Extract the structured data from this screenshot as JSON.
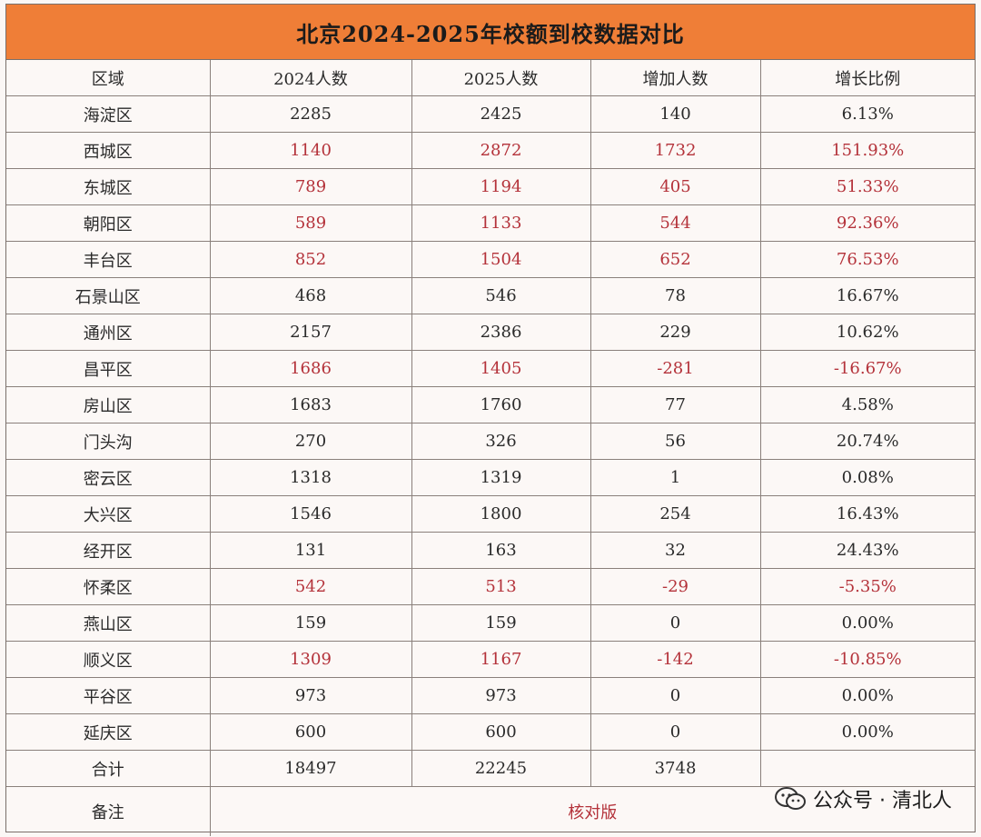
{
  "title": "北京2024-2025年校额到校数据对比",
  "headers": [
    "区域",
    "2024人数",
    "2025人数",
    "增加人数",
    "增长比例"
  ],
  "rows": [
    {
      "district": "海淀区",
      "y2024": "2285",
      "y2025": "2425",
      "increase": "140",
      "ratio": "6.13%",
      "highlight": false
    },
    {
      "district": "西城区",
      "y2024": "1140",
      "y2025": "2872",
      "increase": "1732",
      "ratio": "151.93%",
      "highlight": true
    },
    {
      "district": "东城区",
      "y2024": "789",
      "y2025": "1194",
      "increase": "405",
      "ratio": "51.33%",
      "highlight": true
    },
    {
      "district": "朝阳区",
      "y2024": "589",
      "y2025": "1133",
      "increase": "544",
      "ratio": "92.36%",
      "highlight": true
    },
    {
      "district": "丰台区",
      "y2024": "852",
      "y2025": "1504",
      "increase": "652",
      "ratio": "76.53%",
      "highlight": true
    },
    {
      "district": "石景山区",
      "y2024": "468",
      "y2025": "546",
      "increase": "78",
      "ratio": "16.67%",
      "highlight": false
    },
    {
      "district": "通州区",
      "y2024": "2157",
      "y2025": "2386",
      "increase": "229",
      "ratio": "10.62%",
      "highlight": false
    },
    {
      "district": "昌平区",
      "y2024": "1686",
      "y2025": "1405",
      "increase": "-281",
      "ratio": "-16.67%",
      "highlight": true
    },
    {
      "district": "房山区",
      "y2024": "1683",
      "y2025": "1760",
      "increase": "77",
      "ratio": "4.58%",
      "highlight": false
    },
    {
      "district": "门头沟",
      "y2024": "270",
      "y2025": "326",
      "increase": "56",
      "ratio": "20.74%",
      "highlight": false
    },
    {
      "district": "密云区",
      "y2024": "1318",
      "y2025": "1319",
      "increase": "1",
      "ratio": "0.08%",
      "highlight": false
    },
    {
      "district": "大兴区",
      "y2024": "1546",
      "y2025": "1800",
      "increase": "254",
      "ratio": "16.43%",
      "highlight": false
    },
    {
      "district": "经开区",
      "y2024": "131",
      "y2025": "163",
      "increase": "32",
      "ratio": "24.43%",
      "highlight": false
    },
    {
      "district": "怀柔区",
      "y2024": "542",
      "y2025": "513",
      "increase": "-29",
      "ratio": "-5.35%",
      "highlight": true
    },
    {
      "district": "燕山区",
      "y2024": "159",
      "y2025": "159",
      "increase": "0",
      "ratio": "0.00%",
      "highlight": false
    },
    {
      "district": "顺义区",
      "y2024": "1309",
      "y2025": "1167",
      "increase": "-142",
      "ratio": "-10.85%",
      "highlight": true
    },
    {
      "district": "平谷区",
      "y2024": "973",
      "y2025": "973",
      "increase": "0",
      "ratio": "0.00%",
      "highlight": false
    },
    {
      "district": "延庆区",
      "y2024": "600",
      "y2025": "600",
      "increase": "0",
      "ratio": "0.00%",
      "highlight": false
    }
  ],
  "total": {
    "label": "合计",
    "y2024": "18497",
    "y2025": "22245",
    "increase": "3748",
    "ratio": ""
  },
  "remark": {
    "label": "备注",
    "value": "核对版"
  },
  "brand": {
    "icon": "wechat-icon",
    "text": "公众号 · 清北人"
  },
  "watermark": "清北人",
  "colors": {
    "title_bg": "#ef7e37",
    "highlight_text": "#b4323a",
    "text": "#2a2a2a"
  }
}
